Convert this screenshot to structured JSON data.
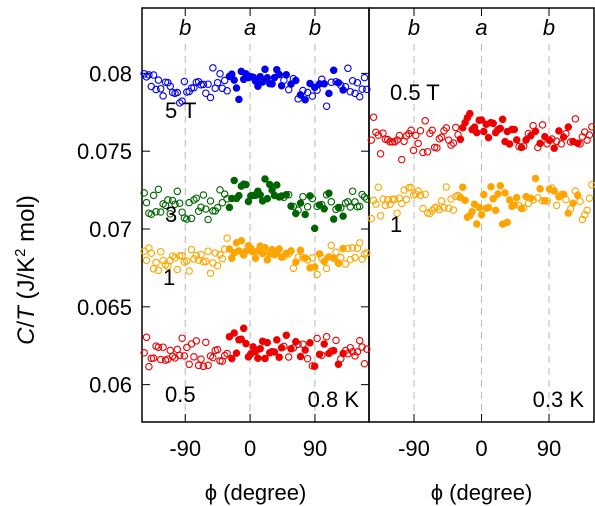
{
  "chart_data": {
    "type": "scatter",
    "y_axis": {
      "label_plain": "C/T (J/K",
      "label_sup": "2",
      "label_tail": " mol)",
      "ylim": [
        0.0576,
        0.0842
      ],
      "ticks": [
        "0.06",
        "0.065",
        "0.07",
        "0.075",
        "0.08"
      ],
      "tick_values": [
        0.06,
        0.065,
        0.07,
        0.075,
        0.08
      ]
    },
    "panels": [
      {
        "temperature_label": "0.8 K",
        "xlabel": "ϕ (degree)",
        "xlim": [
          -150,
          165
        ],
        "x_ticks": [
          "-90",
          "0",
          "90"
        ],
        "x_tick_values": [
          -90,
          0,
          90
        ],
        "direction_labels": [
          {
            "text": "b",
            "x": -90
          },
          {
            "text": "a",
            "x": 0
          },
          {
            "text": "b",
            "x": 90
          }
        ],
        "series": [
          {
            "name": "5 T",
            "color": "#0000ee",
            "center": 0.0793,
            "amplitude": 0.0004,
            "noise": 0.0005
          },
          {
            "name": "3",
            "color": "#006400",
            "center": 0.0718,
            "amplitude": 0.0005,
            "noise": 0.0005
          },
          {
            "name": "1",
            "color": "#ffa500",
            "center": 0.0683,
            "amplitude": 0.0003,
            "noise": 0.0004
          },
          {
            "name": "0.5",
            "color": "#ee0000",
            "center": 0.0622,
            "amplitude": 0.0002,
            "noise": 0.0005
          }
        ]
      },
      {
        "temperature_label": "0.3 K",
        "xlabel": "ϕ (degree)",
        "xlim": [
          -150,
          150
        ],
        "x_ticks": [
          "-90",
          "0",
          "90"
        ],
        "x_tick_values": [
          -90,
          0,
          90
        ],
        "direction_labels": [
          {
            "text": "b",
            "x": -90
          },
          {
            "text": "a",
            "x": 0
          },
          {
            "text": "b",
            "x": 90
          }
        ],
        "series": [
          {
            "name": "0.5 T",
            "color": "#ee0000",
            "center": 0.0761,
            "amplitude": 0.0005,
            "noise": 0.0005
          },
          {
            "name": "1",
            "color": "#ffa500",
            "center": 0.0717,
            "amplitude": -0.0003,
            "noise": 0.0006
          }
        ]
      }
    ]
  }
}
